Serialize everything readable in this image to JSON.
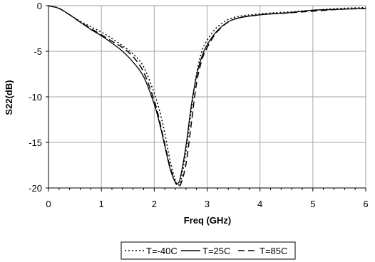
{
  "chart_data": {
    "type": "line",
    "title": "",
    "xlabel": "Freq (GHz)",
    "ylabel": "S22(dB)",
    "xlim": [
      0,
      6
    ],
    "ylim": [
      -20,
      0
    ],
    "xticks": [
      0,
      1,
      2,
      3,
      4,
      5,
      6
    ],
    "yticks": [
      0,
      -5,
      -10,
      -15,
      -20
    ],
    "x_tick_labels": [
      "0",
      "1",
      "2",
      "3",
      "4",
      "5",
      "6"
    ],
    "y_tick_labels": [
      "0",
      "-5",
      "-10",
      "-15",
      "-20"
    ],
    "grid": true,
    "legend_position": "bottom",
    "series": [
      {
        "name": "T=-40C",
        "style": "dotted",
        "color": "#000000",
        "x": [
          0,
          0.2,
          0.4,
          0.6,
          0.8,
          1.0,
          1.2,
          1.4,
          1.6,
          1.8,
          2.0,
          2.1,
          2.2,
          2.3,
          2.4,
          2.45,
          2.5,
          2.6,
          2.7,
          2.8,
          2.9,
          3.0,
          3.2,
          3.5,
          4.0,
          4.5,
          5.0,
          5.5,
          6.0
        ],
        "y": [
          0,
          -0.3,
          -1.0,
          -1.7,
          -2.3,
          -2.9,
          -3.6,
          -4.4,
          -5.3,
          -6.7,
          -9.6,
          -11.5,
          -14.0,
          -17.0,
          -19.2,
          -19.6,
          -19.3,
          -16.0,
          -11.5,
          -7.5,
          -5.0,
          -3.8,
          -2.3,
          -1.3,
          -0.9,
          -0.7,
          -0.5,
          -0.3,
          -0.2
        ]
      },
      {
        "name": "T=25C",
        "style": "solid",
        "color": "#000000",
        "x": [
          0,
          0.2,
          0.4,
          0.6,
          0.8,
          1.0,
          1.2,
          1.4,
          1.6,
          1.8,
          2.0,
          2.1,
          2.2,
          2.3,
          2.4,
          2.45,
          2.5,
          2.6,
          2.7,
          2.8,
          2.9,
          3.0,
          3.2,
          3.5,
          4.0,
          4.5,
          5.0,
          5.5,
          6.0
        ],
        "y": [
          0,
          -0.3,
          -1.0,
          -1.8,
          -2.6,
          -3.3,
          -4.1,
          -5.0,
          -6.2,
          -7.8,
          -10.8,
          -12.9,
          -15.4,
          -17.9,
          -19.4,
          -19.5,
          -18.7,
          -15.4,
          -11.0,
          -7.7,
          -5.6,
          -4.3,
          -2.7,
          -1.5,
          -1.0,
          -0.8,
          -0.5,
          -0.4,
          -0.3
        ]
      },
      {
        "name": "T=85C",
        "style": "dashed",
        "color": "#000000",
        "x": [
          0,
          0.2,
          0.4,
          0.6,
          0.8,
          1.0,
          1.2,
          1.4,
          1.6,
          1.8,
          2.0,
          2.1,
          2.2,
          2.3,
          2.4,
          2.45,
          2.5,
          2.6,
          2.7,
          2.8,
          2.9,
          3.0,
          3.2,
          3.5,
          4.0,
          4.5,
          5.0,
          5.5,
          6.0
        ],
        "y": [
          0,
          -0.3,
          -1.0,
          -1.8,
          -2.5,
          -3.2,
          -3.9,
          -4.6,
          -5.6,
          -7.3,
          -10.4,
          -12.6,
          -15.2,
          -17.7,
          -19.4,
          -19.7,
          -19.6,
          -17.4,
          -13.0,
          -8.5,
          -6.0,
          -4.6,
          -2.8,
          -1.5,
          -1.0,
          -0.8,
          -0.6,
          -0.4,
          -0.3
        ]
      }
    ]
  }
}
